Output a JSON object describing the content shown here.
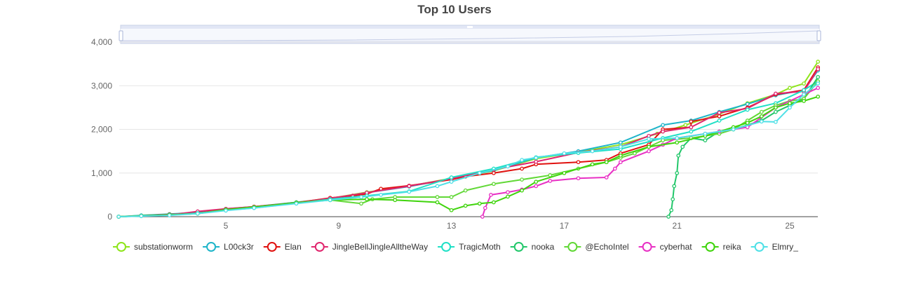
{
  "chart_data": {
    "type": "line",
    "title": "Top 10 Users",
    "xlabel": "",
    "ylabel": "",
    "xlim": [
      4,
      26
    ],
    "ylim": [
      0,
      4000
    ],
    "x_ticks": [
      5,
      9,
      13,
      17,
      21,
      25
    ],
    "y_ticks": [
      0,
      1000,
      2000,
      3000,
      4000
    ],
    "y_tick_labels": [
      "0",
      "1,000",
      "2,000",
      "3,000",
      "4,000"
    ],
    "grid": "horizontal",
    "legend_position": "bottom",
    "range_slider": true,
    "series": [
      {
        "name": "substationworm",
        "color": "#8ee51b",
        "points": [
          [
            1.2,
            0
          ],
          [
            2,
            25
          ],
          [
            3,
            50
          ],
          [
            4,
            90
          ],
          [
            5,
            170
          ],
          [
            6,
            220
          ],
          [
            7.5,
            330
          ],
          [
            8.7,
            420
          ],
          [
            10,
            560
          ],
          [
            11.5,
            700
          ],
          [
            13,
            880
          ],
          [
            14.5,
            1050
          ],
          [
            16,
            1330
          ],
          [
            17.5,
            1480
          ],
          [
            19,
            1650
          ],
          [
            20.3,
            1900
          ],
          [
            21.3,
            2100
          ],
          [
            22.5,
            2350
          ],
          [
            23.5,
            2600
          ],
          [
            24.5,
            2800
          ],
          [
            25,
            2950
          ],
          [
            25.5,
            3050
          ],
          [
            26,
            3550
          ]
        ]
      },
      {
        "name": "L00ck3r",
        "color": "#1fb5c9",
        "points": [
          [
            1.2,
            0
          ],
          [
            2,
            30
          ],
          [
            3,
            60
          ],
          [
            4,
            100
          ],
          [
            5,
            180
          ],
          [
            6,
            230
          ],
          [
            7.5,
            330
          ],
          [
            8.7,
            410
          ],
          [
            10,
            550
          ],
          [
            11.5,
            690
          ],
          [
            13,
            870
          ],
          [
            14.5,
            1060
          ],
          [
            16,
            1350
          ],
          [
            17.5,
            1500
          ],
          [
            19,
            1700
          ],
          [
            20.5,
            2100
          ],
          [
            21.5,
            2200
          ],
          [
            22.5,
            2400
          ],
          [
            23.5,
            2580
          ],
          [
            24.5,
            2780
          ],
          [
            25.5,
            2900
          ],
          [
            26,
            3350
          ]
        ]
      },
      {
        "name": "Elan",
        "color": "#e0120f",
        "points": [
          [
            1.2,
            0
          ],
          [
            2,
            20
          ],
          [
            3,
            50
          ],
          [
            4,
            80
          ],
          [
            5,
            170
          ],
          [
            6,
            230
          ],
          [
            7.5,
            320
          ],
          [
            8.7,
            430
          ],
          [
            9.5,
            480
          ],
          [
            10,
            520
          ],
          [
            10.5,
            640
          ],
          [
            11.5,
            710
          ],
          [
            13,
            850
          ],
          [
            13.5,
            920
          ],
          [
            14.5,
            1000
          ],
          [
            15.5,
            1100
          ],
          [
            16,
            1200
          ],
          [
            17.5,
            1250
          ],
          [
            18.5,
            1300
          ],
          [
            19,
            1450
          ],
          [
            20,
            1650
          ],
          [
            20.5,
            2000
          ],
          [
            21.5,
            2050
          ],
          [
            21.5,
            2180
          ],
          [
            22.5,
            2300
          ],
          [
            23.5,
            2500
          ],
          [
            24.5,
            2800
          ],
          [
            25.5,
            2900
          ],
          [
            26,
            3420
          ]
        ]
      },
      {
        "name": "JingleBellJingleAlltheWay",
        "color": "#e0266e",
        "points": [
          [
            1.2,
            0
          ],
          [
            2,
            20
          ],
          [
            3,
            40
          ],
          [
            4,
            120
          ],
          [
            5,
            180
          ],
          [
            6,
            230
          ],
          [
            7.5,
            320
          ],
          [
            8.7,
            420
          ],
          [
            10,
            550
          ],
          [
            11.5,
            700
          ],
          [
            13,
            870
          ],
          [
            14.5,
            1080
          ],
          [
            16,
            1260
          ],
          [
            17.5,
            1470
          ],
          [
            19,
            1600
          ],
          [
            20,
            1850
          ],
          [
            20.5,
            1950
          ],
          [
            21.5,
            2050
          ],
          [
            22.5,
            2380
          ],
          [
            23.5,
            2480
          ],
          [
            24.5,
            2820
          ],
          [
            25.5,
            2870
          ],
          [
            26,
            3380
          ]
        ]
      },
      {
        "name": "TragicMoth",
        "color": "#20e0c6",
        "points": [
          [
            1.2,
            0
          ],
          [
            2,
            15
          ],
          [
            3,
            40
          ],
          [
            4,
            80
          ],
          [
            5,
            150
          ],
          [
            6,
            200
          ],
          [
            7.5,
            310
          ],
          [
            8.7,
            400
          ],
          [
            10,
            480
          ],
          [
            11.5,
            580
          ],
          [
            13,
            900
          ],
          [
            14.5,
            1100
          ],
          [
            16,
            1360
          ],
          [
            17.5,
            1460
          ],
          [
            19,
            1550
          ],
          [
            20.5,
            1800
          ],
          [
            21.5,
            1950
          ],
          [
            22.5,
            2200
          ],
          [
            23.5,
            2450
          ],
          [
            24.5,
            2600
          ],
          [
            25.5,
            2900
          ],
          [
            26,
            3100
          ]
        ]
      },
      {
        "name": "nooka",
        "color": "#22c76a",
        "points": [
          [
            20.7,
            0
          ],
          [
            20.8,
            150
          ],
          [
            20.85,
            400
          ],
          [
            20.9,
            700
          ],
          [
            21,
            1000
          ],
          [
            21.05,
            1400
          ],
          [
            21.2,
            1600
          ],
          [
            21.5,
            1800
          ],
          [
            22,
            1750
          ],
          [
            22.5,
            1950
          ],
          [
            23,
            2000
          ],
          [
            23.5,
            2100
          ],
          [
            24,
            2200
          ],
          [
            24.5,
            2400
          ],
          [
            25,
            2550
          ],
          [
            25.5,
            2700
          ],
          [
            26,
            3200
          ]
        ]
      },
      {
        "name": "@EchoIntel",
        "color": "#61d836",
        "points": [
          [
            1.2,
            0
          ],
          [
            2,
            20
          ],
          [
            3,
            40
          ],
          [
            4,
            70
          ],
          [
            5,
            160
          ],
          [
            6,
            220
          ],
          [
            7.5,
            320
          ],
          [
            8.7,
            380
          ],
          [
            9.8,
            300
          ],
          [
            10.2,
            400
          ],
          [
            11,
            450
          ],
          [
            12.5,
            450
          ],
          [
            13,
            450
          ],
          [
            13.5,
            600
          ],
          [
            14.5,
            750
          ],
          [
            15.5,
            850
          ],
          [
            16.5,
            950
          ],
          [
            17.5,
            1100
          ],
          [
            18.5,
            1250
          ],
          [
            19,
            1350
          ],
          [
            19.5,
            1450
          ],
          [
            20,
            1600
          ],
          [
            20.5,
            1750
          ],
          [
            21.5,
            1800
          ],
          [
            22.5,
            1900
          ],
          [
            23,
            2000
          ],
          [
            23.5,
            2200
          ],
          [
            24,
            2400
          ],
          [
            24.5,
            2550
          ],
          [
            25,
            2650
          ],
          [
            25.5,
            2700
          ],
          [
            26,
            3100
          ]
        ]
      },
      {
        "name": "cyberhat",
        "color": "#e830c4",
        "points": [
          [
            14.1,
            0
          ],
          [
            14.2,
            200
          ],
          [
            14.4,
            500
          ],
          [
            15,
            560
          ],
          [
            15.5,
            620
          ],
          [
            16,
            700
          ],
          [
            16.5,
            820
          ],
          [
            17.5,
            880
          ],
          [
            18.5,
            900
          ],
          [
            18.8,
            1100
          ],
          [
            19,
            1250
          ],
          [
            20,
            1500
          ],
          [
            20.5,
            1650
          ],
          [
            21,
            1800
          ],
          [
            22,
            1900
          ],
          [
            22.5,
            1950
          ],
          [
            23.5,
            2050
          ],
          [
            24.5,
            2500
          ],
          [
            25.5,
            2800
          ],
          [
            26,
            2950
          ]
        ]
      },
      {
        "name": "reika",
        "color": "#3fd40c",
        "points": [
          [
            1.2,
            0
          ],
          [
            2,
            20
          ],
          [
            3,
            40
          ],
          [
            4,
            70
          ],
          [
            5,
            160
          ],
          [
            6,
            220
          ],
          [
            7.5,
            320
          ],
          [
            8.7,
            380
          ],
          [
            10,
            400
          ],
          [
            11,
            380
          ],
          [
            12.5,
            330
          ],
          [
            13,
            150
          ],
          [
            13.5,
            250
          ],
          [
            14,
            300
          ],
          [
            14.5,
            330
          ],
          [
            15,
            460
          ],
          [
            15.5,
            600
          ],
          [
            16,
            800
          ],
          [
            17,
            1000
          ],
          [
            18,
            1200
          ],
          [
            18.5,
            1250
          ],
          [
            19,
            1400
          ],
          [
            20,
            1600
          ],
          [
            21,
            1700
          ],
          [
            22,
            1850
          ],
          [
            23,
            2050
          ],
          [
            23.5,
            2150
          ],
          [
            24,
            2300
          ],
          [
            24.5,
            2500
          ],
          [
            25,
            2600
          ],
          [
            25.5,
            2650
          ],
          [
            26,
            2750
          ]
        ]
      },
      {
        "name": "Elmry_",
        "color": "#4fe0e6",
        "points": [
          [
            1.2,
            0
          ],
          [
            2,
            15
          ],
          [
            3,
            30
          ],
          [
            4,
            70
          ],
          [
            5,
            140
          ],
          [
            6,
            200
          ],
          [
            7.5,
            300
          ],
          [
            8.7,
            380
          ],
          [
            9.8,
            450
          ],
          [
            10.5,
            500
          ],
          [
            11.5,
            570
          ],
          [
            12.5,
            700
          ],
          [
            13,
            800
          ],
          [
            14,
            1000
          ],
          [
            15,
            1150
          ],
          [
            15.5,
            1300
          ],
          [
            16,
            1350
          ],
          [
            17,
            1450
          ],
          [
            18,
            1500
          ],
          [
            19,
            1600
          ],
          [
            20,
            1780
          ],
          [
            21,
            1800
          ],
          [
            22,
            1900
          ],
          [
            23,
            2000
          ],
          [
            24,
            2180
          ],
          [
            24.5,
            2170
          ],
          [
            25,
            2500
          ],
          [
            25.5,
            2800
          ],
          [
            26,
            3050
          ]
        ]
      }
    ]
  }
}
